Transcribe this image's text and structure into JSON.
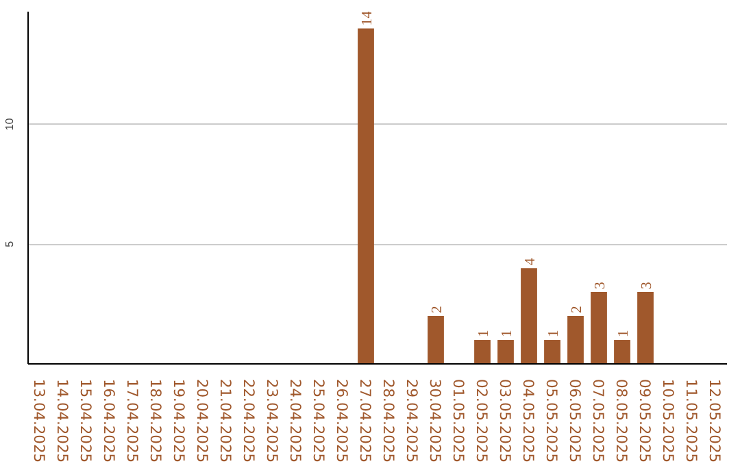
{
  "chart_data": {
    "type": "bar",
    "categories": [
      "13.04.2025",
      "14.04.2025",
      "15.04.2025",
      "16.04.2025",
      "17.04.2025",
      "18.04.2025",
      "19.04.2025",
      "20.04.2025",
      "21.04.2025",
      "22.04.2025",
      "23.04.2025",
      "24.04.2025",
      "25.04.2025",
      "26.04.2025",
      "27.04.2025",
      "28.04.2025",
      "29.04.2025",
      "30.04.2025",
      "01.05.2025",
      "02.05.2025",
      "03.05.2025",
      "04.05.2025",
      "05.05.2025",
      "06.05.2025",
      "07.05.2025",
      "08.05.2025",
      "09.05.2025",
      "10.05.2025",
      "11.05.2025",
      "12.05.2025"
    ],
    "values": [
      0,
      0,
      0,
      0,
      0,
      0,
      0,
      0,
      0,
      0,
      0,
      0,
      0,
      0,
      14,
      0,
      0,
      2,
      0,
      1,
      1,
      4,
      1,
      2,
      3,
      1,
      3,
      0,
      0,
      0
    ],
    "value_labels": [
      null,
      null,
      null,
      null,
      null,
      null,
      null,
      null,
      null,
      null,
      null,
      null,
      null,
      null,
      "14",
      null,
      null,
      "2",
      null,
      "1",
      "1",
      "4",
      "1",
      "2",
      "3",
      "1",
      "3",
      null,
      null,
      null
    ],
    "color": "#a0582c",
    "ylim": [
      0,
      14.7
    ],
    "yticks": [
      5,
      10
    ],
    "grid": "y"
  }
}
